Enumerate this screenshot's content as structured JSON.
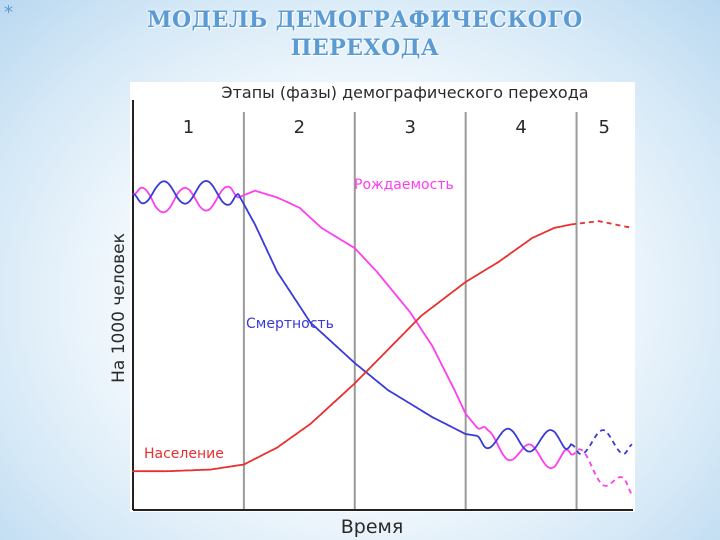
{
  "slide": {
    "title_line1": "МОДЕЛЬ ДЕМОГРАФИЧЕСКОГО",
    "title_line2": "ПЕРЕХОДА",
    "decoration_glyph": "*"
  },
  "chart_data": {
    "type": "line",
    "title": "Этапы (фазы) демографического перехода",
    "xlabel": "Время",
    "ylabel": "На 1000 человек",
    "stages": [
      "1",
      "2",
      "3",
      "4",
      "5"
    ],
    "stage_boundaries": [
      1,
      2,
      3,
      4
    ],
    "xlim": [
      0,
      4.5
    ],
    "ylim": [
      0,
      100
    ],
    "grid": false,
    "legend": "inline labels",
    "series": [
      {
        "name": "Рождаемость",
        "color": "#ff3df0",
        "points": [
          [
            0,
            84
          ],
          [
            0.2,
            81
          ],
          [
            0.4,
            83
          ],
          [
            0.6,
            82
          ],
          [
            0.8,
            83
          ],
          [
            0.95,
            83
          ],
          [
            1.1,
            85
          ],
          [
            1.3,
            83
          ],
          [
            1.5,
            80
          ],
          [
            1.7,
            74
          ],
          [
            2.0,
            68
          ],
          [
            2.2,
            61
          ],
          [
            2.5,
            49
          ],
          [
            2.7,
            39
          ],
          [
            2.9,
            26
          ],
          [
            3.0,
            19
          ],
          [
            3.2,
            11
          ],
          [
            3.5,
            7
          ],
          [
            3.8,
            6
          ],
          [
            3.95,
            7
          ]
        ],
        "dashed_points": [
          [
            3.95,
            7
          ],
          [
            4.2,
            2
          ],
          [
            4.5,
            -5
          ]
        ],
        "oscillating_segments": [
          [
            0,
            0.95
          ],
          [
            3.1,
            3.95
          ]
        ]
      },
      {
        "name": "Смертность",
        "color": "#3a3ad8",
        "points": [
          [
            0,
            84
          ],
          [
            0.2,
            85
          ],
          [
            0.4,
            84
          ],
          [
            0.6,
            85
          ],
          [
            0.8,
            84
          ],
          [
            0.95,
            84
          ],
          [
            1.1,
            75
          ],
          [
            1.3,
            61
          ],
          [
            1.6,
            46
          ],
          [
            2.0,
            34
          ],
          [
            2.3,
            26
          ],
          [
            2.7,
            18
          ],
          [
            3.0,
            13
          ],
          [
            3.2,
            12
          ],
          [
            3.5,
            11
          ],
          [
            3.8,
            11
          ],
          [
            3.95,
            10
          ]
        ],
        "dashed_points": [
          [
            3.95,
            10
          ],
          [
            4.25,
            11
          ],
          [
            4.5,
            10
          ]
        ],
        "oscillating_segments": [
          [
            0,
            0.95
          ],
          [
            3.1,
            3.95
          ]
        ]
      },
      {
        "name": "Население",
        "color": "#e83030",
        "points": [
          [
            0,
            2
          ],
          [
            0.3,
            2
          ],
          [
            0.7,
            2.5
          ],
          [
            1.0,
            4
          ],
          [
            1.3,
            9
          ],
          [
            1.6,
            16
          ],
          [
            2.0,
            28
          ],
          [
            2.3,
            38
          ],
          [
            2.6,
            48
          ],
          [
            3.0,
            58
          ],
          [
            3.3,
            64
          ],
          [
            3.6,
            71
          ],
          [
            3.8,
            74
          ],
          [
            3.95,
            75
          ]
        ],
        "dashed_points": [
          [
            3.95,
            75
          ],
          [
            4.2,
            76
          ],
          [
            4.5,
            74
          ]
        ],
        "oscillating_segments": []
      }
    ],
    "annotations": [
      {
        "text": "Рождаемость",
        "series": "Рождаемость"
      },
      {
        "text": "Смертность",
        "series": "Смертность"
      },
      {
        "text": "Население",
        "series": "Население"
      }
    ]
  }
}
